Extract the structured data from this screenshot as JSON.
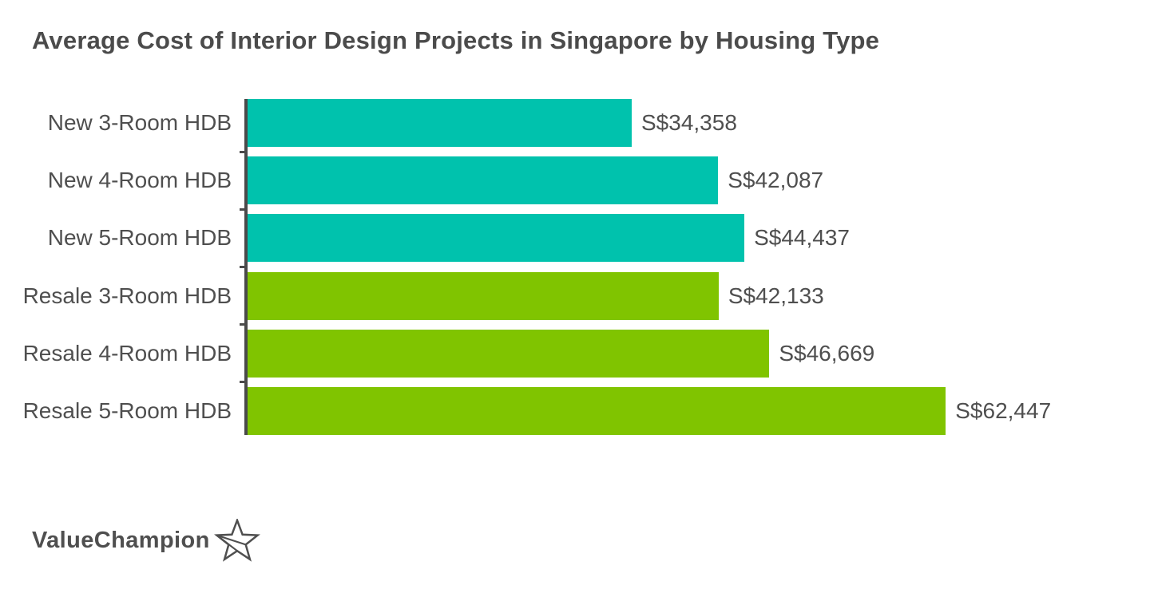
{
  "title": "Average Cost of Interior Design Projects in Singapore by Housing Type",
  "branding": {
    "logo_text": "ValueChampion",
    "logo_icon": "star-ribbon-icon"
  },
  "colors": {
    "teal": "#00C2AD",
    "green": "#80C400",
    "axis": "#4A4A4A",
    "title_text": "#4B4B4B",
    "label_text": "#4F4F4F",
    "background": "#FFFFFF"
  },
  "chart_data": {
    "type": "bar",
    "orientation": "horizontal",
    "title": "Average Cost of Interior Design Projects in Singapore by Housing Type",
    "categories": [
      "New 3-Room HDB",
      "New 4-Room HDB",
      "New 5-Room HDB",
      "Resale 3-Room HDB",
      "Resale 4-Room HDB",
      "Resale 5-Room HDB"
    ],
    "values": [
      34358,
      42087,
      44437,
      42133,
      46669,
      62447
    ],
    "value_labels": [
      "S$34,358",
      "S$42,087",
      "S$44,437",
      "S$42,133",
      "S$46,669",
      "S$62,447"
    ],
    "series_colors": [
      "teal",
      "teal",
      "teal",
      "green",
      "green",
      "green"
    ],
    "currency": "SGD",
    "xlabel": "",
    "ylabel": "",
    "xlim": [
      0,
      78000
    ],
    "grid": false,
    "legend": false,
    "value_labels_position": "outside-end"
  }
}
